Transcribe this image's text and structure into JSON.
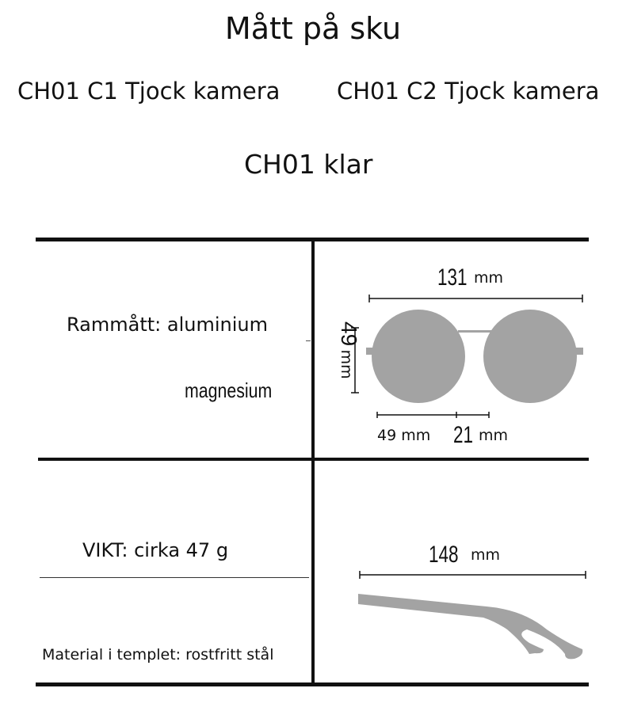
{
  "title": "Mått på sku",
  "skus": [
    "CH01 C1 Tjock kamera",
    "CH01 C2 Tjock kamera",
    "CH01 klar"
  ],
  "frame": {
    "label_line1": "Rammått: aluminium",
    "label_line2": "magnesium"
  },
  "weight": {
    "label": "VIKT: cirka 47 g"
  },
  "temple_material": {
    "label": "Material i templet: rostfritt stål"
  },
  "dimensions": {
    "total_width": "131",
    "total_width_unit": "mm",
    "lens_height": "49",
    "lens_height_unit": "mm",
    "lens_width": "49 mm",
    "bridge": "21",
    "bridge_unit": "mm",
    "temple_length": "148",
    "temple_length_unit": "mm"
  },
  "colors": {
    "lens": "#a3a3a3",
    "line": "#111111"
  }
}
